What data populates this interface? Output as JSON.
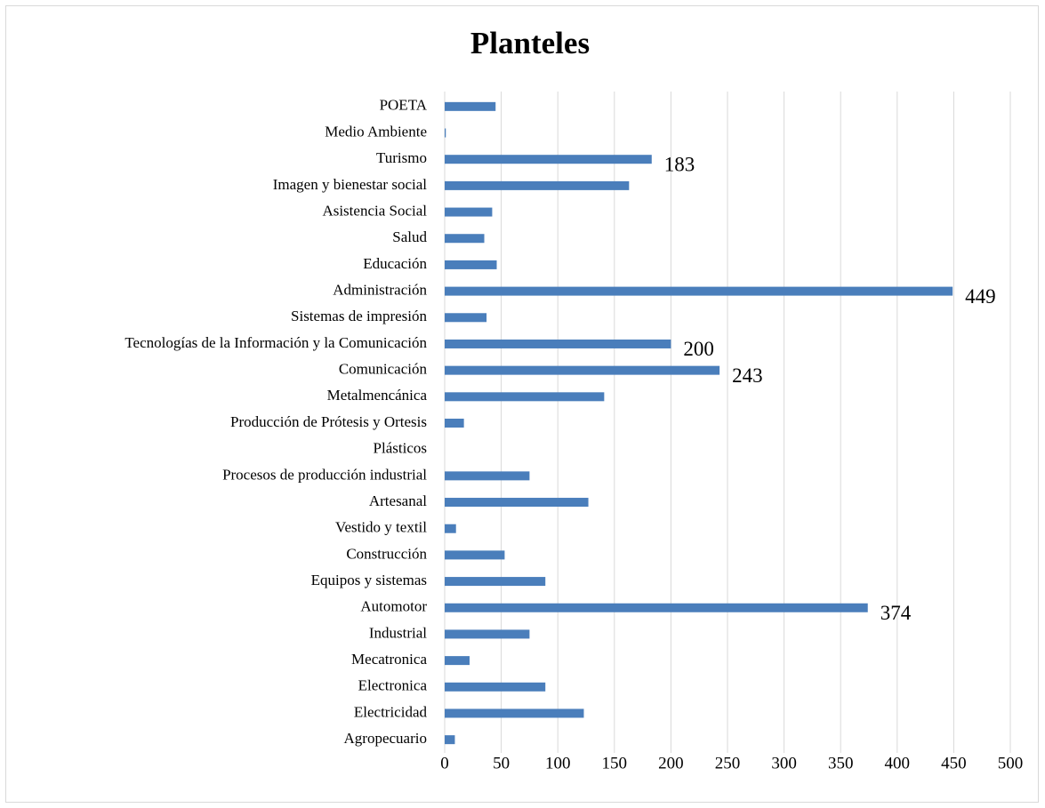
{
  "chart_data": {
    "type": "barh",
    "title": "Planteles",
    "categories": [
      "POETA",
      "Medio Ambiente",
      "Turismo",
      "Imagen y bienestar social",
      "Asistencia Social",
      "Salud",
      "Educación",
      "Administración",
      "Sistemas de impresión",
      "Tecnologías de la Información y la Comunicación",
      "Comunicación",
      "Metalmencánica",
      "Producción de Prótesis y Ortesis",
      "Plásticos",
      "Procesos de producción industrial",
      "Artesanal",
      "Vestido y textil",
      "Construcción",
      "Equipos y sistemas",
      "Automotor",
      "Industrial",
      "Mecatronica",
      "Electronica",
      "Electricidad",
      "Agropecuario"
    ],
    "values": [
      45,
      1,
      183,
      163,
      42,
      35,
      46,
      449,
      37,
      200,
      243,
      141,
      17,
      0,
      75,
      127,
      10,
      53,
      89,
      374,
      75,
      22,
      89,
      123,
      9
    ],
    "value_labels": [
      null,
      null,
      "183",
      null,
      null,
      null,
      null,
      "449",
      null,
      "200",
      "243",
      null,
      null,
      null,
      null,
      null,
      null,
      null,
      null,
      "374",
      null,
      null,
      null,
      null,
      null
    ],
    "color": "#4a7ebb",
    "xlim": [
      0,
      500
    ],
    "xticks": [
      0,
      50,
      100,
      150,
      200,
      250,
      300,
      350,
      400,
      450,
      500
    ],
    "grid": true
  }
}
